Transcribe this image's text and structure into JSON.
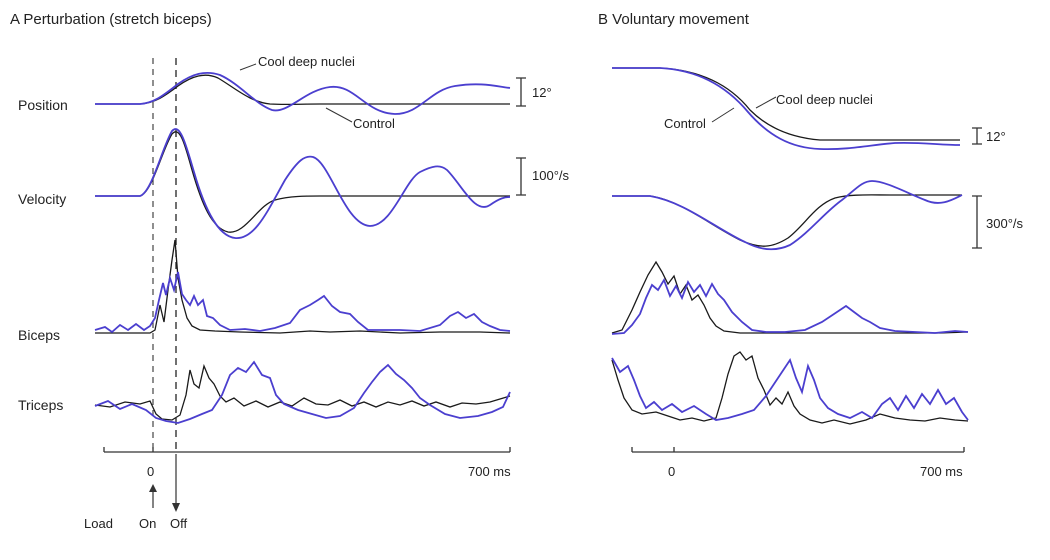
{
  "panel_a": {
    "title": "A  Perturbation (stretch biceps)",
    "rows": {
      "position": "Position",
      "velocity": "Velocity",
      "biceps": "Biceps",
      "triceps": "Triceps"
    },
    "annotations": {
      "cool": "Cool deep nuclei",
      "control": "Control"
    },
    "scales": {
      "position": "12°",
      "velocity": "100°/s"
    },
    "axis": {
      "start": "0",
      "end": "700 ms"
    },
    "load": {
      "label": "Load",
      "on": "On",
      "off": "Off"
    }
  },
  "panel_b": {
    "title": "B  Voluntary movement",
    "annotations": {
      "cool": "Cool deep nuclei",
      "control": "Control"
    },
    "scales": {
      "position": "12°",
      "velocity": "300°/s"
    },
    "axis": {
      "start": "0",
      "end": "700 ms"
    }
  },
  "colors": {
    "control": "#1a1a1a",
    "cool": "#4b3fcf"
  }
}
